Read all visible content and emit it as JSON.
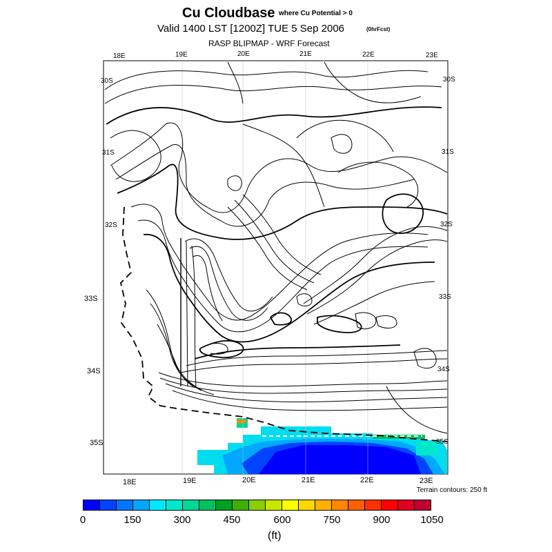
{
  "title": {
    "main": "Cu Cloudbase",
    "qualifier": "where Cu Potential > 0",
    "valid": "Valid 1400 LST [1200Z] TUE 5 Sep 2006",
    "valid_suffix": "(0hrFcst)",
    "subtitle": "RASP BLIPMAP - WRF Forecast"
  },
  "map": {
    "lon_top": [
      "18E",
      "19E",
      "20E",
      "21E",
      "22E",
      "23E"
    ],
    "lon_bottom": [
      "18E",
      "19E",
      "20E",
      "21E",
      "22E",
      "23E"
    ],
    "lat_left": [
      "30S",
      "31S",
      "32S",
      "33S",
      "34S",
      "35S"
    ],
    "lat_right": [
      "30S",
      "31S",
      "32S",
      "33S",
      "34S",
      "35S"
    ],
    "terrain_note": "Terrain contours: 250 ft"
  },
  "legend": {
    "ticks": [
      "0",
      "150",
      "300",
      "450",
      "600",
      "750",
      "900",
      "1050"
    ],
    "unit": "(ft)",
    "colors": [
      "#0000ff",
      "#0044ff",
      "#0077ff",
      "#00a8ff",
      "#00e8ff",
      "#00e8cc",
      "#00d898",
      "#00c060",
      "#00a020",
      "#40b000",
      "#88d000",
      "#c8e800",
      "#ffff00",
      "#ffd800",
      "#ffb000",
      "#ff8800",
      "#ff6000",
      "#ff3000",
      "#ff0000",
      "#e00020",
      "#c00030"
    ]
  }
}
